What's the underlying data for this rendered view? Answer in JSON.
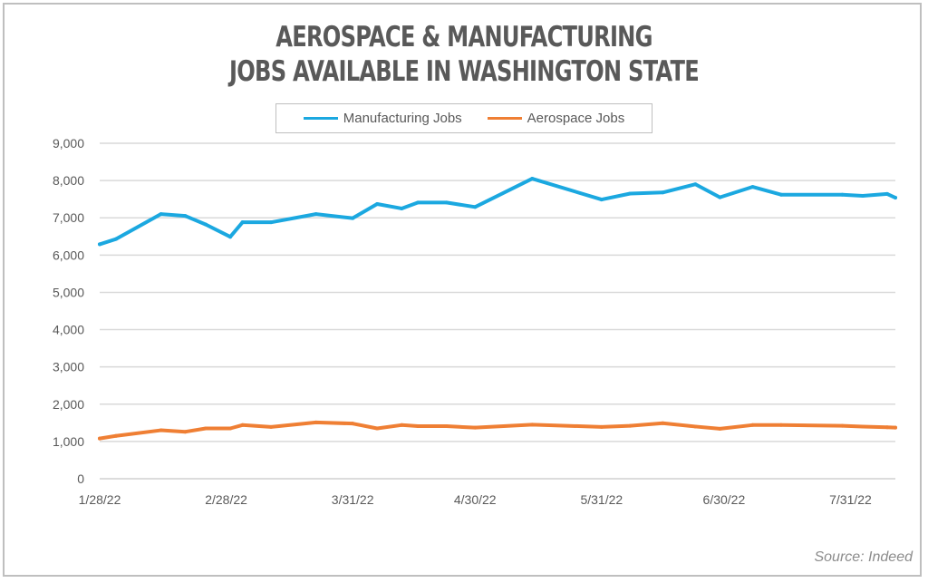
{
  "chart_data": {
    "type": "line",
    "title": "Aerospace & Manufacturing Jobs Available in Washington State",
    "title_lines": [
      "Aerospace & Manufacturing",
      "Jobs Available in Washington State"
    ],
    "xlabel": "",
    "ylabel": "",
    "x": [
      "2022-01-28",
      "2022-02-01",
      "2022-02-12",
      "2022-02-18",
      "2022-02-23",
      "2022-03-01",
      "2022-03-04",
      "2022-03-11",
      "2022-03-22",
      "2022-03-31",
      "2022-04-06",
      "2022-04-12",
      "2022-04-16",
      "2022-04-23",
      "2022-04-30",
      "2022-05-14",
      "2022-05-31",
      "2022-06-07",
      "2022-06-15",
      "2022-06-23",
      "2022-06-29",
      "2022-07-07",
      "2022-07-14",
      "2022-07-29",
      "2022-08-03",
      "2022-08-09",
      "2022-08-11"
    ],
    "series": [
      {
        "name": "Manufacturing Jobs",
        "color": "#1BA8E0",
        "values": [
          6290,
          6430,
          7100,
          7050,
          6820,
          6490,
          6880,
          6880,
          7100,
          6990,
          7370,
          7250,
          7410,
          7410,
          7290,
          8050,
          7490,
          7650,
          7680,
          7900,
          7550,
          7830,
          7620,
          7620,
          7590,
          7640,
          7540
        ]
      },
      {
        "name": "Aerospace Jobs",
        "color": "#EF7F34",
        "values": [
          1080,
          1150,
          1300,
          1260,
          1350,
          1350,
          1440,
          1390,
          1510,
          1480,
          1350,
          1440,
          1410,
          1410,
          1370,
          1450,
          1390,
          1420,
          1490,
          1400,
          1340,
          1440,
          1440,
          1420,
          1400,
          1380,
          1370
        ]
      }
    ],
    "x_ticks": [
      "2022-01-28",
      "2022-02-28",
      "2022-03-31",
      "2022-04-30",
      "2022-05-31",
      "2022-06-30",
      "2022-07-31"
    ],
    "x_tick_labels": [
      "1/28/22",
      "2/28/22",
      "3/31/22",
      "4/30/22",
      "5/31/22",
      "6/30/22",
      "7/31/22"
    ],
    "y_ticks": [
      0,
      1000,
      2000,
      3000,
      4000,
      5000,
      6000,
      7000,
      8000,
      9000
    ],
    "y_tick_labels": [
      "0",
      "1,000",
      "2,000",
      "3,000",
      "4,000",
      "5,000",
      "6,000",
      "7,000",
      "8,000",
      "9,000"
    ],
    "ylim": [
      0,
      9000
    ],
    "xlim": [
      "2022-01-28",
      "2022-08-11"
    ],
    "grid": "horizontal",
    "legend": "top",
    "source": "Source: Indeed"
  }
}
